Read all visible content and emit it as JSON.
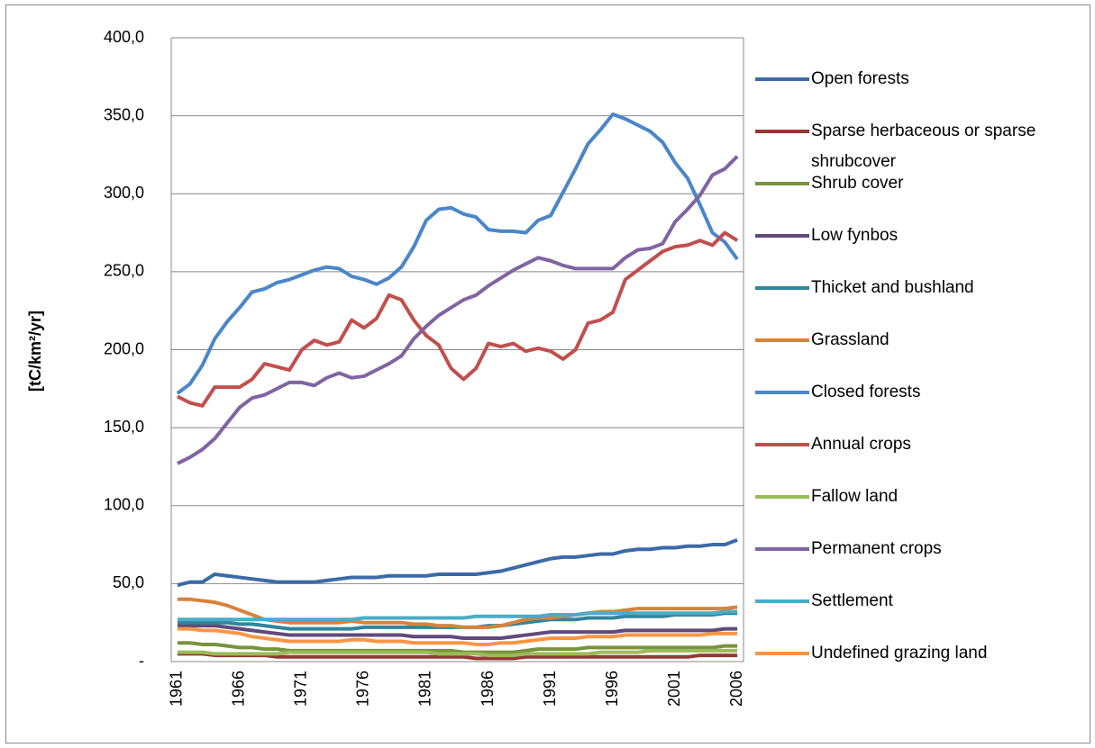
{
  "chart_data": {
    "type": "line",
    "y_label": "[tC/km²/yr]",
    "categories": [
      "1961",
      null,
      null,
      null,
      null,
      "1966",
      null,
      null,
      null,
      null,
      "1971",
      null,
      null,
      null,
      null,
      "1976",
      null,
      null,
      null,
      null,
      "1981",
      null,
      null,
      null,
      null,
      "1986",
      null,
      null,
      null,
      null,
      "1991",
      null,
      null,
      null,
      null,
      "1996",
      null,
      null,
      null,
      null,
      "2001",
      null,
      null,
      null,
      null,
      "2006"
    ],
    "ylim": [
      0,
      400
    ],
    "yticks": [
      {
        "value": 0,
        "label": "-"
      },
      {
        "value": 50,
        "label": "50,0"
      },
      {
        "value": 100,
        "label": "100,0"
      },
      {
        "value": 150,
        "label": "150,0"
      },
      {
        "value": 200,
        "label": "200,0"
      },
      {
        "value": 250,
        "label": "250,0"
      },
      {
        "value": 300,
        "label": "300,0"
      },
      {
        "value": 350,
        "label": "350,0"
      },
      {
        "value": 400,
        "label": "400,0"
      }
    ],
    "grid": true,
    "legend": "right",
    "series": [
      {
        "name": "Open forests",
        "color": "#3c6aa8",
        "values": [
          49,
          51,
          51,
          56,
          55,
          54,
          53,
          52,
          51,
          51,
          51,
          51,
          52,
          53,
          54,
          54,
          54,
          55,
          55,
          55,
          55,
          56,
          56,
          56,
          56,
          57,
          58,
          60,
          62,
          64,
          66,
          67,
          67,
          68,
          69,
          69,
          71,
          72,
          72,
          73,
          73,
          74,
          74,
          75,
          75,
          78
        ]
      },
      {
        "name": "Sparse herbaceous or sparse shrubcover",
        "color": "#953735",
        "values": [
          5,
          5,
          5,
          4,
          4,
          4,
          4,
          4,
          3,
          3,
          3,
          3,
          3,
          3,
          3,
          3,
          3,
          3,
          3,
          3,
          3,
          3,
          3,
          3,
          2,
          2,
          2,
          2,
          3,
          3,
          3,
          3,
          3,
          3,
          3,
          3,
          3,
          3,
          3,
          3,
          3,
          3,
          4,
          4,
          4,
          4
        ]
      },
      {
        "name": "Shrub cover",
        "color": "#77933c",
        "values": [
          12,
          12,
          11,
          11,
          10,
          9,
          9,
          8,
          8,
          7,
          7,
          7,
          7,
          7,
          7,
          7,
          7,
          7,
          7,
          7,
          7,
          7,
          7,
          6,
          6,
          6,
          6,
          6,
          7,
          8,
          8,
          8,
          8,
          9,
          9,
          9,
          9,
          9,
          9,
          9,
          9,
          9,
          9,
          9,
          10,
          10
        ]
      },
      {
        "name": "Low fynbos",
        "color": "#604a7b",
        "values": [
          23,
          23,
          23,
          23,
          22,
          21,
          20,
          19,
          18,
          17,
          17,
          17,
          17,
          17,
          17,
          17,
          17,
          17,
          17,
          16,
          16,
          16,
          16,
          15,
          15,
          15,
          15,
          16,
          17,
          18,
          19,
          19,
          19,
          19,
          19,
          19,
          20,
          20,
          20,
          20,
          20,
          20,
          20,
          20,
          21,
          21
        ]
      },
      {
        "name": "Thicket and bushland",
        "color": "#31859c",
        "values": [
          25,
          25,
          25,
          25,
          25,
          24,
          24,
          23,
          22,
          21,
          21,
          21,
          21,
          21,
          21,
          22,
          22,
          22,
          22,
          22,
          22,
          22,
          22,
          22,
          22,
          23,
          23,
          24,
          25,
          26,
          27,
          27,
          27,
          28,
          28,
          28,
          29,
          29,
          29,
          29,
          30,
          30,
          30,
          30,
          31,
          31
        ]
      },
      {
        "name": "Grassland",
        "color": "#d9823b",
        "values": [
          40,
          40,
          39,
          38,
          36,
          33,
          30,
          27,
          26,
          25,
          25,
          25,
          25,
          25,
          26,
          25,
          25,
          25,
          25,
          24,
          24,
          23,
          23,
          22,
          22,
          22,
          23,
          25,
          27,
          28,
          28,
          29,
          30,
          31,
          32,
          32,
          33,
          34,
          34,
          34,
          34,
          34,
          34,
          34,
          34,
          35
        ]
      },
      {
        "name": "Closed forests",
        "color": "#4a86c8",
        "values": [
          172,
          178,
          190,
          207,
          218,
          227,
          237,
          239,
          243,
          245,
          248,
          251,
          253,
          252,
          247,
          245,
          242,
          246,
          253,
          266,
          283,
          290,
          291,
          287,
          285,
          277,
          276,
          276,
          275,
          283,
          286,
          301,
          316,
          332,
          341,
          351,
          348,
          344,
          340,
          333,
          320,
          310,
          293,
          275,
          269,
          258
        ]
      },
      {
        "name": "Annual crops",
        "color": "#c0504d",
        "values": [
          170,
          166,
          164,
          176,
          176,
          176,
          181,
          191,
          189,
          187,
          200,
          206,
          203,
          205,
          219,
          214,
          220,
          235,
          232,
          219,
          209,
          203,
          188,
          181,
          188,
          204,
          202,
          204,
          199,
          201,
          199,
          194,
          200,
          217,
          219,
          224,
          245,
          251,
          257,
          263,
          266,
          267,
          270,
          267,
          275,
          270
        ]
      },
      {
        "name": "Fallow land",
        "color": "#9bbb59",
        "values": [
          6,
          6,
          6,
          5,
          5,
          5,
          5,
          5,
          5,
          6,
          6,
          6,
          6,
          6,
          6,
          6,
          6,
          6,
          6,
          6,
          6,
          5,
          5,
          5,
          5,
          4,
          4,
          4,
          5,
          5,
          5,
          5,
          5,
          5,
          6,
          6,
          6,
          6,
          7,
          7,
          7,
          7,
          7,
          7,
          7,
          7
        ]
      },
      {
        "name": "Permanent crops",
        "color": "#8064a2",
        "values": [
          127,
          131,
          136,
          143,
          153,
          163,
          169,
          171,
          175,
          179,
          179,
          177,
          182,
          185,
          182,
          183,
          187,
          191,
          196,
          207,
          215,
          222,
          227,
          232,
          235,
          241,
          246,
          251,
          255,
          259,
          257,
          254,
          252,
          252,
          252,
          252,
          259,
          264,
          265,
          268,
          282,
          290,
          299,
          312,
          316,
          324
        ]
      },
      {
        "name": "Settlement",
        "color": "#4bacc6",
        "values": [
          27,
          27,
          27,
          27,
          27,
          27,
          27,
          27,
          27,
          27,
          27,
          27,
          27,
          27,
          27,
          28,
          28,
          28,
          28,
          28,
          28,
          28,
          28,
          28,
          29,
          29,
          29,
          29,
          29,
          29,
          30,
          30,
          30,
          31,
          31,
          31,
          31,
          31,
          31,
          31,
          31,
          31,
          31,
          31,
          32,
          32
        ]
      },
      {
        "name": "Undefined grazing land",
        "color": "#f79646",
        "values": [
          21,
          21,
          20,
          20,
          19,
          18,
          16,
          15,
          14,
          13,
          13,
          13,
          13,
          13,
          14,
          14,
          13,
          13,
          13,
          12,
          12,
          12,
          12,
          12,
          11,
          11,
          12,
          12,
          13,
          14,
          15,
          15,
          15,
          16,
          16,
          16,
          17,
          17,
          17,
          17,
          17,
          17,
          17,
          18,
          18,
          18
        ]
      }
    ]
  }
}
